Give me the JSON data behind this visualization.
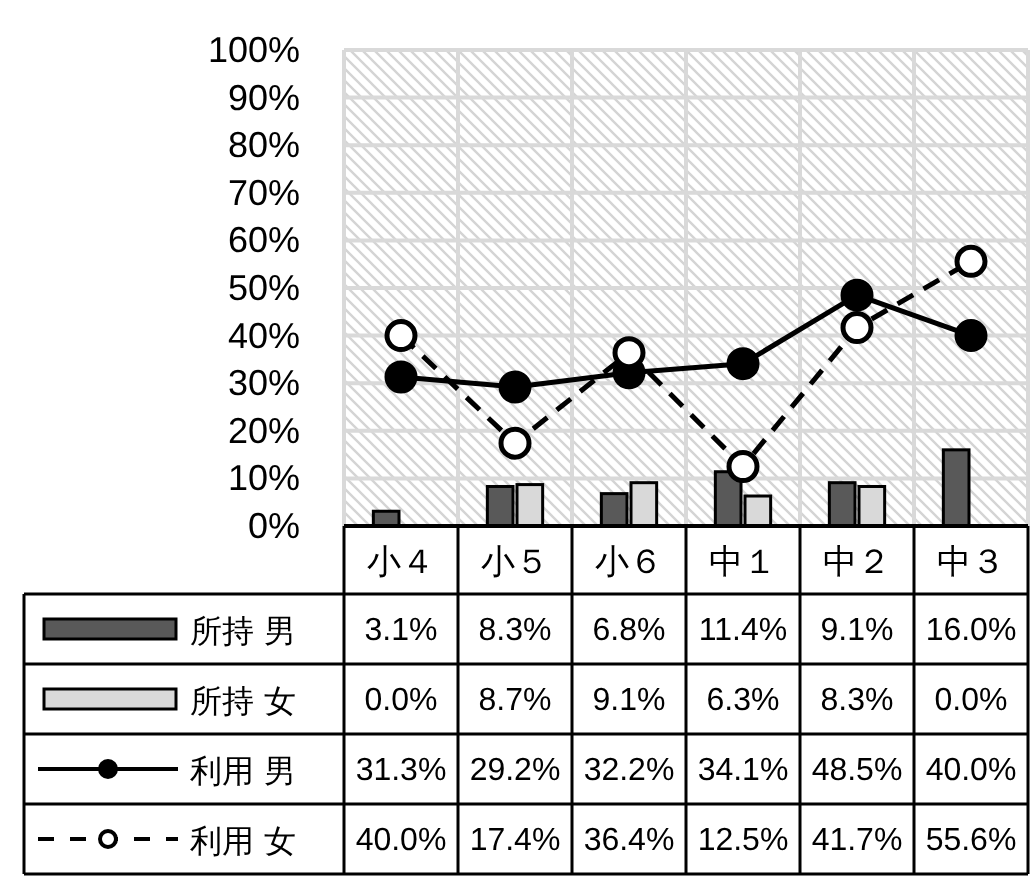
{
  "chart_data": {
    "type": "bar",
    "categories": [
      "小４",
      "小５",
      "小６",
      "中１",
      "中２",
      "中３"
    ],
    "series": [
      {
        "name": "所持 男",
        "color": "#595959",
        "values": [
          3.1,
          8.3,
          6.8,
          11.4,
          9.1,
          16.0
        ],
        "value_labels": [
          "3.1%",
          "8.3%",
          "6.8%",
          "11.4%",
          "9.1%",
          "16.0%"
        ]
      },
      {
        "name": "所持 女",
        "color": "#d9d9d9",
        "values": [
          0.0,
          8.7,
          9.1,
          6.3,
          8.3,
          0.0
        ],
        "value_labels": [
          "0.0%",
          "8.7%",
          "9.1%",
          "6.3%",
          "8.3%",
          "0.0%"
        ]
      },
      {
        "name": "利用 男",
        "type": "line",
        "color": "#000000",
        "line_style": "solid",
        "values": [
          31.3,
          29.2,
          32.2,
          34.1,
          48.5,
          40.0
        ],
        "value_labels": [
          "31.3%",
          "29.2%",
          "32.2%",
          "34.1%",
          "48.5%",
          "40.0%"
        ]
      },
      {
        "name": "利用 女",
        "type": "line",
        "color": "#000000",
        "line_style": "dashed",
        "values": [
          40.0,
          17.4,
          36.4,
          12.5,
          41.7,
          55.6
        ],
        "value_labels": [
          "40.0%",
          "17.4%",
          "36.4%",
          "12.5%",
          "41.7%",
          "55.6%"
        ]
      }
    ],
    "ylim": [
      0,
      100
    ],
    "yticks": [
      {
        "value": 0,
        "label": "0%"
      },
      {
        "value": 10,
        "label": "10%"
      },
      {
        "value": 20,
        "label": "20%"
      },
      {
        "value": 30,
        "label": "30%"
      },
      {
        "value": 40,
        "label": "40%"
      },
      {
        "value": 50,
        "label": "50%"
      },
      {
        "value": 60,
        "label": "60%"
      },
      {
        "value": 70,
        "label": "70%"
      },
      {
        "value": 80,
        "label": "80%"
      },
      {
        "value": 90,
        "label": "90%"
      },
      {
        "value": 100,
        "label": "100%"
      }
    ],
    "grid": true,
    "legend": "bottom",
    "marker": "circle"
  }
}
